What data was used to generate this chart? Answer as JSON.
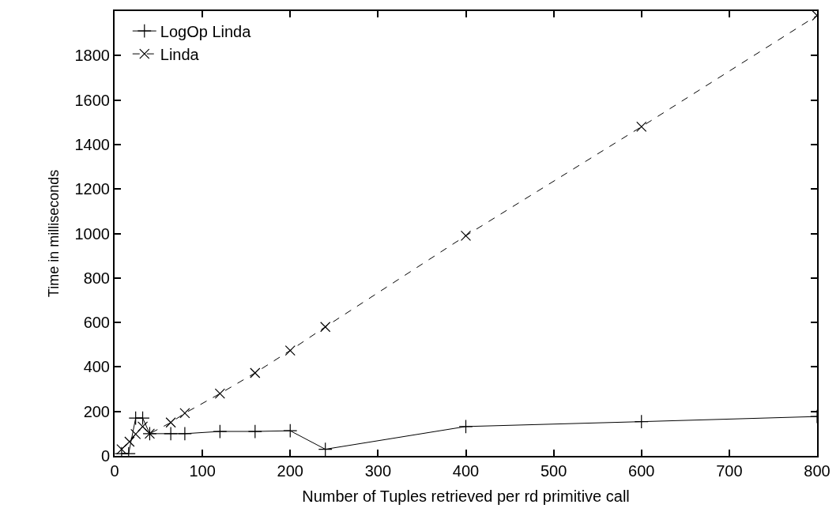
{
  "chart_data": {
    "type": "line",
    "xlabel": "Number of Tuples retrieved per rd primitive call",
    "ylabel": "Time in milliseconds",
    "xlim": [
      0,
      800
    ],
    "ylim": [
      0,
      2000
    ],
    "xticks": [
      0,
      100,
      200,
      300,
      400,
      500,
      600,
      700,
      800
    ],
    "yticks": [
      0,
      200,
      400,
      600,
      800,
      1000,
      1200,
      1400,
      1600,
      1800
    ],
    "legend": "top left",
    "series": [
      {
        "name": "LogOp Linda",
        "color": "#000000",
        "marker": "cross",
        "line_style": "solid",
        "x": [
          8,
          16,
          24,
          32,
          40,
          64,
          80,
          120,
          160,
          200,
          240,
          400,
          600,
          800
        ],
        "values": [
          10,
          10,
          170,
          170,
          100,
          100,
          100,
          110,
          110,
          113,
          30,
          132,
          154,
          177
        ]
      },
      {
        "name": "Linda",
        "color": "#000000",
        "marker": "x",
        "line_style": "dashed",
        "x": [
          8,
          17,
          24,
          32,
          40,
          64,
          80,
          120,
          160,
          200,
          240,
          400,
          600,
          800
        ],
        "values": [
          30,
          64,
          98,
          132,
          100,
          150,
          192,
          280,
          373,
          474,
          580,
          990,
          1480,
          1980
        ]
      }
    ]
  }
}
